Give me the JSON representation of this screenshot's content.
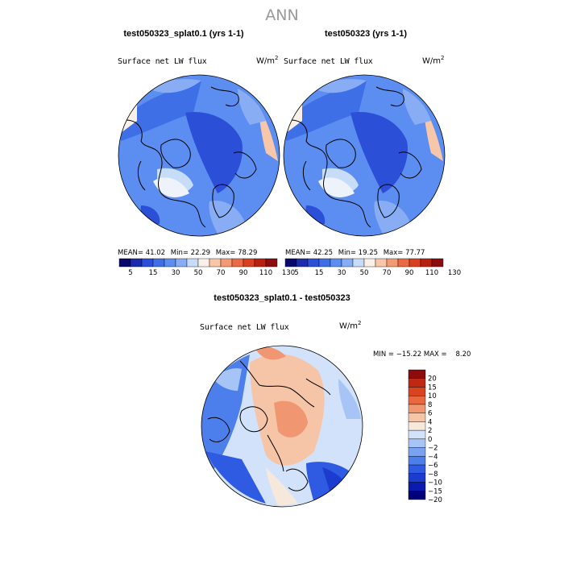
{
  "page_title": "ANN",
  "colors": {
    "land_outline": "#000000",
    "palette_abs": [
      "#08086b",
      "#1c2cab",
      "#2b4fd6",
      "#3f6fe6",
      "#5b8ef0",
      "#88adf4",
      "#c6dcf9",
      "#fbf0e8",
      "#f8c6a8",
      "#f29a73",
      "#ea6a45",
      "#d84020",
      "#b82010",
      "#8b0d0d"
    ],
    "palette_diff": [
      "#00007a",
      "#0a1cb0",
      "#1b3ccf",
      "#2f5ae2",
      "#4d7fec",
      "#79a2f2",
      "#a7c4f6",
      "#d2e2fb",
      "#f7e8dc",
      "#f6c4a6",
      "#f09671",
      "#e9683f",
      "#d84320",
      "#c02812",
      "#8d0b0b"
    ]
  },
  "panels": [
    {
      "id": "left",
      "title": "test050323_splat0.1 (yrs 1-1)",
      "variable_label": "Surface net LW flux",
      "units_base": "W/m",
      "units_exp": "2",
      "mean_label": "MEAN=",
      "mean": "41.02",
      "min_label": "Min=",
      "min": "22.29",
      "max_label": "Max=",
      "max": "78.29"
    },
    {
      "id": "right",
      "title": "test050323 (yrs 1-1)",
      "variable_label": "Surface net LW flux",
      "units_base": "W/m",
      "units_exp": "2",
      "mean_label": "MEAN=",
      "mean": "42.25",
      "min_label": "Min=",
      "min": "19.25",
      "max_label": "Max=",
      "max": "77.77"
    }
  ],
  "diff_panel": {
    "title": "test050323_splat0.1 - test050323",
    "variable_label": "Surface net LW flux",
    "units_base": "W/m",
    "units_exp": "2",
    "stats_text": "MIN = −15.22 MAX =    8.20"
  },
  "chart_data": [
    {
      "type": "heatmap",
      "title": "test050323_splat0.1 (yrs 1-1)",
      "projection": "north polar stereographic",
      "variable": "Surface net LW flux",
      "units": "W/m2",
      "mean": 41.02,
      "min": 22.29,
      "max": 78.29,
      "colorbar_levels": [
        5,
        10,
        15,
        20,
        30,
        40,
        50,
        60,
        70,
        80,
        90,
        100,
        110,
        120,
        130
      ],
      "colorbar_tick_labels": [
        "5",
        "15",
        "30",
        "50",
        "70",
        "90",
        "110",
        "130"
      ]
    },
    {
      "type": "heatmap",
      "title": "test050323 (yrs 1-1)",
      "projection": "north polar stereographic",
      "variable": "Surface net LW flux",
      "units": "W/m2",
      "mean": 42.25,
      "min": 19.25,
      "max": 77.77,
      "colorbar_levels": [
        5,
        10,
        15,
        20,
        30,
        40,
        50,
        60,
        70,
        80,
        90,
        100,
        110,
        120,
        130
      ],
      "colorbar_tick_labels": [
        "5",
        "15",
        "30",
        "50",
        "70",
        "90",
        "110",
        "130"
      ]
    },
    {
      "type": "heatmap",
      "title": "test050323_splat0.1 - test050323",
      "projection": "north polar stereographic",
      "variable": "Surface net LW flux",
      "units": "W/m2",
      "min": -15.22,
      "max": 8.2,
      "colorbar_levels": [
        -20,
        -15,
        -10,
        -8,
        -6,
        -4,
        -2,
        0,
        2,
        4,
        6,
        8,
        10,
        15,
        20
      ],
      "colorbar_tick_labels": [
        "20",
        "15",
        "10",
        "8",
        "6",
        "4",
        "2",
        "0",
        "−2",
        "−4",
        "−6",
        "−8",
        "−10",
        "−15",
        "−20"
      ]
    }
  ]
}
